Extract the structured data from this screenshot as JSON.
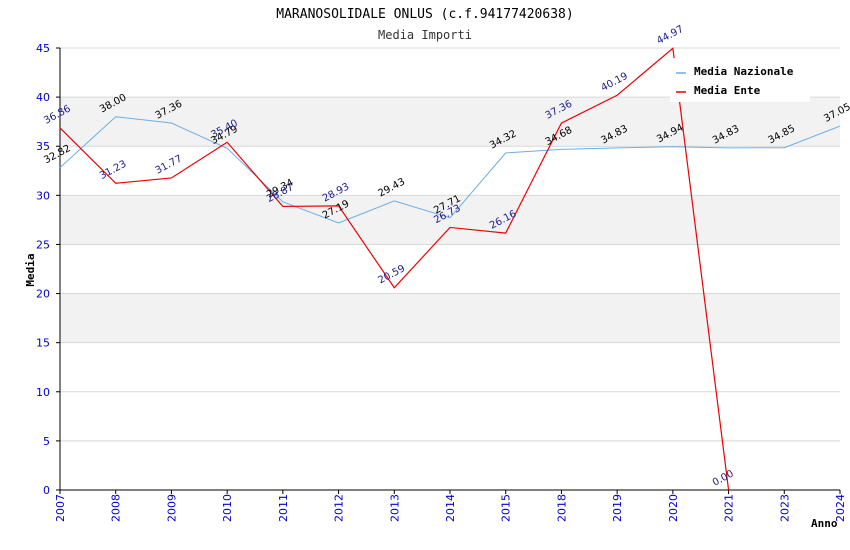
{
  "chart_data": {
    "type": "line",
    "title": "MARANOSOLIDALE ONLUS (c.f.94177420638)",
    "subtitle": "Media Importi",
    "xlabel": "Anno",
    "ylabel": "Media",
    "ylim": [
      0,
      45
    ],
    "yticks": [
      0,
      5,
      10,
      15,
      20,
      25,
      30,
      35,
      40,
      45
    ],
    "grid": "horizontal bands",
    "legend_position": "top-right",
    "categories": [
      "2007",
      "2008",
      "2009",
      "2010",
      "2011",
      "2012",
      "2013",
      "2014",
      "2015",
      "2018",
      "2019",
      "2020",
      "2021",
      "2023",
      "2024"
    ],
    "series": [
      {
        "name": "Media Nazionale",
        "color": "#6aaee8",
        "values": [
          32.82,
          38.0,
          37.36,
          34.79,
          29.34,
          27.19,
          29.43,
          27.71,
          34.32,
          34.68,
          34.83,
          34.94,
          34.83,
          34.85,
          37.05
        ],
        "labels": [
          "32.82",
          "38.00",
          "37.36",
          "34.79",
          "29.34",
          "27.19",
          "29.43",
          "27.71",
          "34.32",
          "34.68",
          "34.83",
          "34.94",
          "34.83",
          "34.85",
          "37.05"
        ]
      },
      {
        "name": "Media Ente",
        "color": "#ee0000",
        "values": [
          36.86,
          31.23,
          31.77,
          35.4,
          28.87,
          28.93,
          20.59,
          26.73,
          26.16,
          37.36,
          40.19,
          44.97,
          0.0,
          null,
          null
        ],
        "labels": [
          "36.86",
          "31.23",
          "31.77",
          "35.40",
          "28.87",
          "28.93",
          "20.59",
          "26.73",
          "26.16",
          "37.36",
          "40.19",
          "44.97",
          "0.00",
          null,
          null
        ]
      }
    ]
  },
  "colors": {
    "band": "#f2f2f2",
    "gridline": "#d8d8d8",
    "axis": "#000000",
    "tick_text": "#0000cc"
  }
}
